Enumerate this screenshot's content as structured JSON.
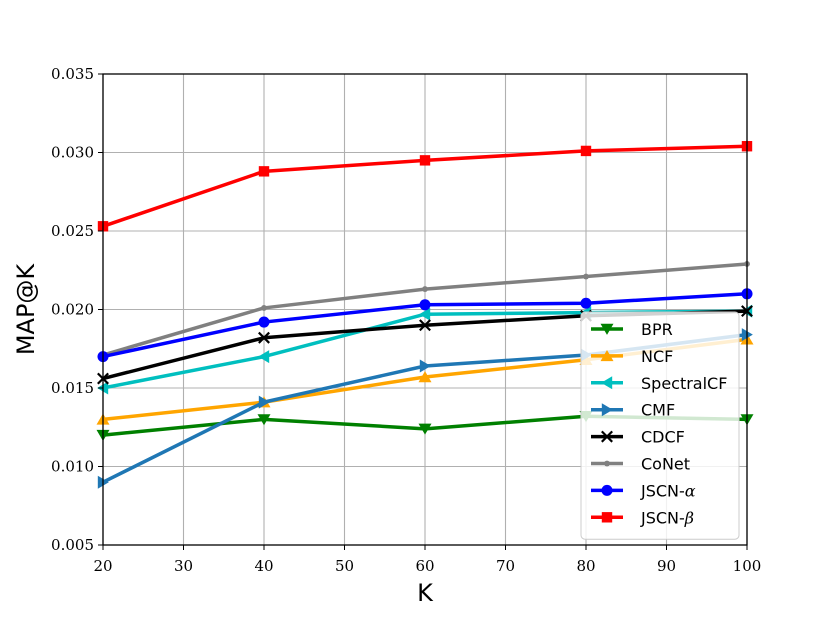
{
  "chart_data": {
    "type": "line",
    "xlabel": "K",
    "ylabel": "MAP@K",
    "x": [
      20,
      40,
      60,
      80,
      100
    ],
    "xlim": [
      20,
      100
    ],
    "ylim": [
      0.005,
      0.035
    ],
    "xticks": [
      20,
      30,
      40,
      50,
      60,
      70,
      80,
      90,
      100
    ],
    "xtick_labels": [
      "20",
      "30",
      "40",
      "50",
      "60",
      "70",
      "80",
      "90",
      "100"
    ],
    "yticks": [
      0.005,
      0.01,
      0.015,
      0.02,
      0.025,
      0.03,
      0.035
    ],
    "ytick_labels": [
      "0.005",
      "0.010",
      "0.015",
      "0.020",
      "0.025",
      "0.030",
      "0.035"
    ],
    "grid": true,
    "legend_position": "lower-right",
    "series": [
      {
        "name": "BPR",
        "label_main": "BPR",
        "label_greek": "",
        "color": "#008000",
        "marker": "triangle-down",
        "values": [
          0.012,
          0.013,
          0.0124,
          0.0132,
          0.013
        ]
      },
      {
        "name": "NCF",
        "label_main": "NCF",
        "label_greek": "",
        "color": "#ffa500",
        "marker": "triangle-up",
        "values": [
          0.013,
          0.0141,
          0.0157,
          0.0168,
          0.0181
        ]
      },
      {
        "name": "SpectralCF",
        "label_main": "SpectralCF",
        "label_greek": "",
        "color": "#00bfbf",
        "marker": "triangle-left",
        "values": [
          0.015,
          0.017,
          0.0197,
          0.0198,
          0.0199
        ]
      },
      {
        "name": "CMF",
        "label_main": "CMF",
        "label_greek": "",
        "color": "#1f77b4",
        "marker": "triangle-right",
        "values": [
          0.009,
          0.0141,
          0.0164,
          0.0171,
          0.0184
        ]
      },
      {
        "name": "CDCF",
        "label_main": "CDCF",
        "label_greek": "",
        "color": "#000000",
        "marker": "x",
        "values": [
          0.0156,
          0.0182,
          0.019,
          0.0196,
          0.0199
        ]
      },
      {
        "name": "CoNet",
        "label_main": "CoNet",
        "label_greek": "",
        "color": "#808080",
        "marker": "point",
        "values": [
          0.0171,
          0.0201,
          0.0213,
          0.0221,
          0.0229
        ]
      },
      {
        "name": "JSCN-α",
        "label_main": "JSCN-",
        "label_greek": "α",
        "color": "#0000ff",
        "marker": "circle",
        "values": [
          0.017,
          0.0192,
          0.0203,
          0.0204,
          0.021
        ]
      },
      {
        "name": "JSCN-β",
        "label_main": "JSCN-",
        "label_greek": "β",
        "color": "#ff0000",
        "marker": "square",
        "values": [
          0.0253,
          0.0288,
          0.0295,
          0.0301,
          0.0304
        ]
      }
    ]
  }
}
